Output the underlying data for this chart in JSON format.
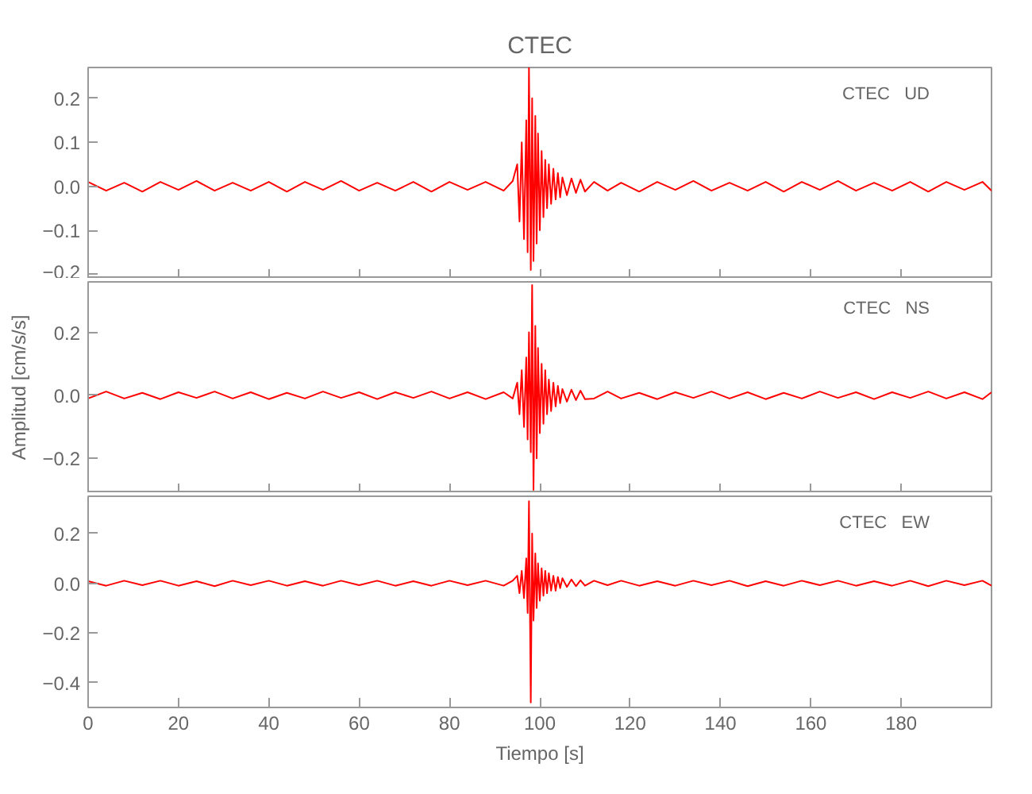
{
  "chart_data": [
    {
      "type": "line",
      "title": "CTEC",
      "annotations": [
        "CTEC   UD"
      ],
      "tick_labels": "y",
      "grid": false,
      "x": [
        0,
        4,
        8,
        12,
        16,
        20,
        24,
        28,
        32,
        36,
        40,
        44,
        48,
        52,
        56,
        60,
        64,
        68,
        72,
        76,
        80,
        84,
        88,
        92,
        94,
        95,
        95.5,
        96,
        96.5,
        97,
        97.3,
        97.6,
        98,
        98.3,
        98.6,
        99,
        99.3,
        99.6,
        100,
        100.4,
        100.8,
        101.2,
        101.6,
        102,
        102.5,
        103,
        103.5,
        104,
        104.5,
        105,
        106,
        107,
        108,
        109,
        110,
        112,
        115,
        118,
        122,
        126,
        130,
        134,
        138,
        142,
        146,
        150,
        154,
        158,
        162,
        166,
        170,
        174,
        178,
        182,
        186,
        190,
        194,
        198,
        200
      ],
      "series": [
        {
          "color": "#ff0000",
          "values": [
            0.01,
            -0.01,
            0.008,
            -0.012,
            0.01,
            -0.008,
            0.012,
            -0.01,
            0.008,
            -0.01,
            0.01,
            -0.012,
            0.01,
            -0.008,
            0.012,
            -0.01,
            0.008,
            -0.01,
            0.01,
            -0.012,
            0.01,
            -0.008,
            0.01,
            -0.01,
            0.012,
            0.05,
            -0.08,
            0.1,
            -0.12,
            0.15,
            -0.15,
            0.27,
            -0.19,
            0.2,
            -0.17,
            0.16,
            -0.13,
            0.12,
            -0.1,
            0.08,
            -0.07,
            0.06,
            -0.05,
            0.05,
            -0.04,
            0.04,
            -0.03,
            0.03,
            -0.025,
            0.02,
            -0.02,
            0.018,
            -0.015,
            0.015,
            -0.012,
            0.01,
            -0.01,
            0.008,
            -0.012,
            0.01,
            -0.008,
            0.012,
            -0.01,
            0.008,
            -0.01,
            0.01,
            -0.012,
            0.01,
            -0.008,
            0.012,
            -0.01,
            0.008,
            -0.01,
            0.01,
            -0.012,
            0.01,
            -0.008,
            0.01,
            -0.01
          ]
        }
      ],
      "xlim": [
        0,
        200
      ],
      "xticks": [
        0,
        20,
        40,
        60,
        80,
        100,
        120,
        140,
        160,
        180
      ],
      "ylim": [
        -0.21,
        0.27
      ],
      "yticks": [
        {
          "value": -0.2,
          "label": "−0.2"
        },
        {
          "value": -0.1,
          "label": "−0.1"
        },
        {
          "value": 0,
          "label": "0.0"
        },
        {
          "value": 0.1,
          "label": "0.1"
        },
        {
          "value": 0.2,
          "label": "0.2"
        }
      ]
    },
    {
      "type": "line",
      "ylabel": "Amplitud [cm/s/s]",
      "annotations": [
        "CTEC   NS"
      ],
      "tick_labels": "y",
      "grid": false,
      "x": [
        0,
        4,
        8,
        12,
        16,
        20,
        24,
        28,
        32,
        36,
        40,
        44,
        48,
        52,
        56,
        60,
        64,
        68,
        72,
        76,
        80,
        84,
        88,
        92,
        94,
        95,
        95.5,
        96,
        96.5,
        97,
        97.3,
        97.6,
        98,
        98.3,
        98.6,
        99,
        99.3,
        99.6,
        100,
        100.4,
        100.8,
        101.2,
        101.6,
        102,
        102.5,
        103,
        103.5,
        104,
        104.5,
        105,
        106,
        107,
        108,
        109,
        110,
        112,
        115,
        118,
        122,
        126,
        130,
        134,
        138,
        142,
        146,
        150,
        154,
        158,
        162,
        166,
        170,
        174,
        178,
        182,
        186,
        190,
        194,
        198,
        200
      ],
      "series": [
        {
          "color": "#ff0000",
          "values": [
            -0.01,
            0.012,
            -0.01,
            0.008,
            -0.012,
            0.01,
            -0.008,
            0.012,
            -0.01,
            0.01,
            -0.012,
            0.008,
            -0.01,
            0.012,
            -0.008,
            0.01,
            -0.012,
            0.01,
            -0.008,
            0.012,
            -0.01,
            0.01,
            -0.012,
            0.01,
            -0.01,
            0.04,
            -0.06,
            0.08,
            -0.1,
            0.12,
            -0.14,
            0.2,
            -0.18,
            0.35,
            -0.3,
            0.22,
            -0.2,
            0.15,
            -0.12,
            0.1,
            -0.09,
            0.08,
            -0.06,
            0.05,
            -0.05,
            0.04,
            -0.035,
            0.03,
            -0.025,
            0.02,
            -0.02,
            0.018,
            -0.015,
            0.015,
            -0.012,
            -0.01,
            0.012,
            -0.01,
            0.008,
            -0.012,
            0.01,
            -0.008,
            0.012,
            -0.01,
            0.01,
            -0.012,
            0.008,
            -0.01,
            0.012,
            -0.008,
            0.01,
            -0.012,
            0.01,
            -0.008,
            0.012,
            -0.01,
            0.01,
            -0.012,
            0.01
          ]
        }
      ],
      "xlim": [
        0,
        200
      ],
      "xticks": [
        0,
        20,
        40,
        60,
        80,
        100,
        120,
        140,
        160,
        180
      ],
      "ylim": [
        -0.31,
        0.36
      ],
      "yticks": [
        {
          "value": -0.2,
          "label": "−0.2"
        },
        {
          "value": 0,
          "label": "0.0"
        },
        {
          "value": 0.2,
          "label": "0.2"
        }
      ]
    },
    {
      "type": "line",
      "xlabel": "Tiempo [s]",
      "annotations": [
        "CTEC   EW"
      ],
      "grid": false,
      "x": [
        0,
        4,
        8,
        12,
        16,
        20,
        24,
        28,
        32,
        36,
        40,
        44,
        48,
        52,
        56,
        60,
        64,
        68,
        72,
        76,
        80,
        84,
        88,
        92,
        94,
        95,
        95.5,
        96,
        96.5,
        97,
        97.3,
        97.6,
        98,
        98.3,
        98.6,
        99,
        99.3,
        99.6,
        100,
        100.4,
        100.8,
        101.2,
        101.6,
        102,
        102.5,
        103,
        103.5,
        104,
        104.5,
        105,
        106,
        107,
        108,
        109,
        110,
        112,
        115,
        118,
        122,
        126,
        130,
        134,
        138,
        142,
        146,
        150,
        154,
        158,
        162,
        166,
        170,
        174,
        178,
        182,
        186,
        190,
        194,
        198,
        200
      ],
      "series": [
        {
          "color": "#ff0000",
          "values": [
            0.008,
            -0.01,
            0.01,
            -0.008,
            0.01,
            -0.01,
            0.008,
            -0.012,
            0.01,
            -0.008,
            0.01,
            -0.01,
            0.008,
            -0.01,
            0.01,
            -0.008,
            0.01,
            -0.01,
            0.008,
            -0.01,
            0.01,
            -0.008,
            0.01,
            -0.01,
            0.01,
            0.03,
            -0.04,
            0.05,
            -0.06,
            0.1,
            -0.12,
            0.33,
            -0.48,
            0.2,
            -0.15,
            0.12,
            -0.1,
            0.08,
            -0.07,
            0.06,
            -0.05,
            0.05,
            -0.04,
            0.04,
            -0.03,
            0.03,
            -0.03,
            0.025,
            -0.02,
            0.02,
            -0.015,
            0.015,
            -0.012,
            0.012,
            -0.01,
            0.01,
            -0.008,
            0.01,
            -0.01,
            0.008,
            -0.01,
            0.01,
            -0.008,
            0.01,
            -0.012,
            0.008,
            -0.01,
            0.01,
            -0.008,
            0.01,
            -0.01,
            0.008,
            -0.01,
            0.01,
            -0.012,
            0.01,
            -0.008,
            0.01,
            -0.01
          ]
        }
      ],
      "xlim": [
        0,
        200
      ],
      "xticks": [
        0,
        20,
        40,
        60,
        80,
        100,
        120,
        140,
        160,
        180
      ],
      "ylim": [
        -0.5,
        0.35
      ],
      "yticks": [
        {
          "value": -0.4,
          "label": "−0.4"
        },
        {
          "value": -0.2,
          "label": "−0.2"
        },
        {
          "value": 0,
          "label": "0.0"
        },
        {
          "value": 0.2,
          "label": "0.2"
        }
      ]
    }
  ]
}
